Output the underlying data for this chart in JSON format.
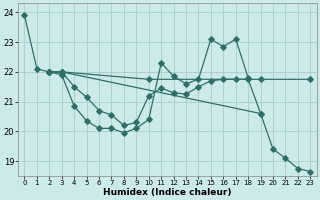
{
  "xlabel": "Humidex (Indice chaleur)",
  "bg_color": "#cdeaea",
  "grid_color": "#a8cccc",
  "line_color": "#2d7068",
  "xlim": [
    -0.5,
    23.5
  ],
  "ylim": [
    18.5,
    24.3
  ],
  "yticks": [
    19,
    20,
    21,
    22,
    23,
    24
  ],
  "xticks": [
    0,
    1,
    2,
    3,
    4,
    5,
    6,
    7,
    8,
    9,
    10,
    11,
    12,
    13,
    14,
    15,
    16,
    17,
    18,
    19,
    20,
    21,
    22,
    23
  ],
  "series": [
    {
      "x": [
        0,
        1,
        2,
        3,
        4,
        5,
        6,
        7,
        8,
        9,
        10,
        11,
        12,
        13,
        14,
        15,
        16,
        17,
        18,
        19,
        20,
        21,
        22,
        23
      ],
      "y": [
        23.9,
        22.1,
        22.0,
        21.9,
        20.85,
        20.35,
        20.1,
        20.1,
        19.95,
        20.1,
        20.4,
        22.3,
        21.85,
        21.6,
        21.75,
        23.1,
        22.85,
        23.1,
        21.8,
        null,
        null,
        null,
        null,
        null
      ]
    },
    {
      "x": [
        2,
        3,
        10,
        19,
        23
      ],
      "y": [
        22.0,
        22.0,
        21.75,
        21.75,
        21.75
      ]
    },
    {
      "x": [
        2,
        3,
        19,
        20,
        21,
        22,
        23
      ],
      "y": [
        22.0,
        22.0,
        20.6,
        19.4,
        19.1,
        18.75,
        18.65
      ]
    },
    {
      "x": [
        2,
        3,
        4,
        5,
        6,
        7,
        8,
        9,
        10,
        11,
        12,
        13,
        14,
        15,
        16,
        17,
        18,
        19,
        20,
        21,
        22,
        23
      ],
      "y": [
        22.0,
        22.0,
        21.5,
        21.15,
        20.7,
        20.55,
        20.2,
        20.3,
        21.2,
        21.45,
        21.3,
        21.25,
        21.5,
        21.7,
        21.75,
        21.75,
        21.75,
        20.6,
        null,
        null,
        null,
        null
      ]
    }
  ]
}
